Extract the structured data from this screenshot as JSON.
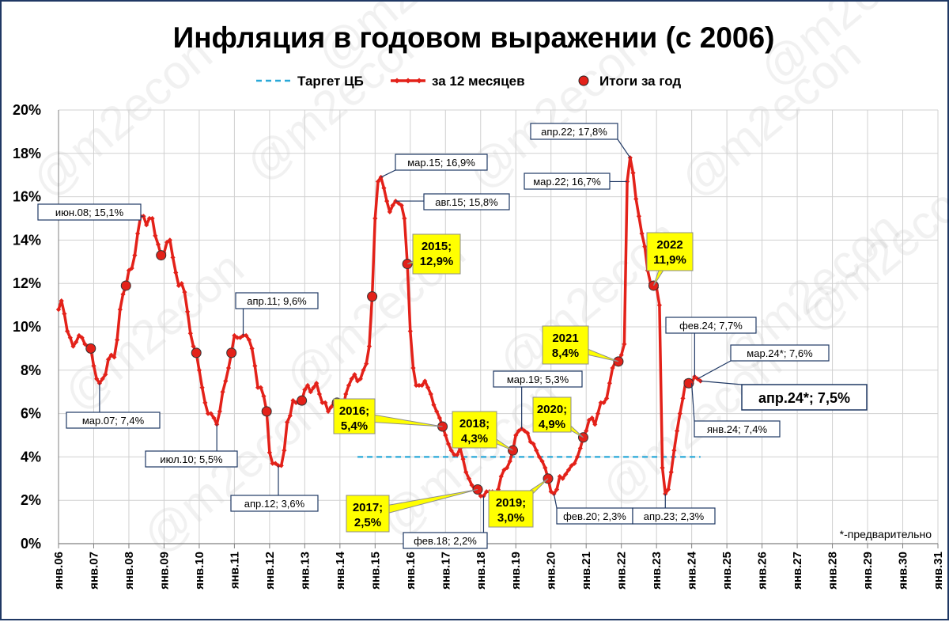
{
  "chart_data": {
    "type": "line",
    "title": "Инфляция в годовом выражении (с 2006)",
    "watermark": "@m2econ",
    "footnote": "*-предварительно",
    "ylim": [
      0,
      20
    ],
    "yticks": [
      "0%",
      "2%",
      "4%",
      "6%",
      "8%",
      "10%",
      "12%",
      "14%",
      "16%",
      "18%",
      "20%"
    ],
    "xticks": [
      "янв.06",
      "янв.07",
      "янв.08",
      "янв.09",
      "янв.10",
      "янв.11",
      "янв.12",
      "янв.13",
      "янв.14",
      "янв.15",
      "янв.16",
      "янв.17",
      "янв.18",
      "янв.19",
      "янв.20",
      "янв.21",
      "янв.22",
      "янв.23",
      "янв.24",
      "янв.25",
      "янв.26",
      "янв.27",
      "янв.28",
      "янв.29",
      "янв.30",
      "янв.31"
    ],
    "legend": [
      {
        "name": "Таргет ЦБ",
        "color": "#29a8d8",
        "style": "dashed"
      },
      {
        "name": "за 12 месяцев",
        "color": "#e32119",
        "style": "line-markers"
      },
      {
        "name": "Итоги за год",
        "color": "#e32119",
        "style": "circle"
      }
    ],
    "target": {
      "value": 4,
      "from": "2014-07",
      "to": "2024-04"
    },
    "series": [
      {
        "name": "за 12 месяцев",
        "color": "#e32119",
        "points": [
          [
            "2006-01",
            10.8
          ],
          [
            "2006-02",
            11.2
          ],
          [
            "2006-03",
            10.6
          ],
          [
            "2006-04",
            9.8
          ],
          [
            "2006-05",
            9.5
          ],
          [
            "2006-06",
            9.1
          ],
          [
            "2006-07",
            9.3
          ],
          [
            "2006-08",
            9.6
          ],
          [
            "2006-09",
            9.5
          ],
          [
            "2006-10",
            9.2
          ],
          [
            "2006-11",
            9.1
          ],
          [
            "2006-12",
            9.0
          ],
          [
            "2007-01",
            8.2
          ],
          [
            "2007-02",
            7.6
          ],
          [
            "2007-03",
            7.4
          ],
          [
            "2007-04",
            7.6
          ],
          [
            "2007-05",
            7.8
          ],
          [
            "2007-06",
            8.5
          ],
          [
            "2007-07",
            8.7
          ],
          [
            "2007-08",
            8.6
          ],
          [
            "2007-09",
            9.4
          ],
          [
            "2007-10",
            10.8
          ],
          [
            "2007-11",
            11.5
          ],
          [
            "2007-12",
            11.9
          ],
          [
            "2008-01",
            12.6
          ],
          [
            "2008-02",
            12.7
          ],
          [
            "2008-03",
            13.3
          ],
          [
            "2008-04",
            14.3
          ],
          [
            "2008-05",
            15.1
          ],
          [
            "2008-06",
            15.1
          ],
          [
            "2008-07",
            14.7
          ],
          [
            "2008-08",
            15.0
          ],
          [
            "2008-09",
            15.0
          ],
          [
            "2008-10",
            14.2
          ],
          [
            "2008-11",
            13.8
          ],
          [
            "2008-12",
            13.3
          ],
          [
            "2009-01",
            13.4
          ],
          [
            "2009-02",
            13.9
          ],
          [
            "2009-03",
            14.0
          ],
          [
            "2009-04",
            13.2
          ],
          [
            "2009-05",
            12.5
          ],
          [
            "2009-06",
            11.9
          ],
          [
            "2009-07",
            12.0
          ],
          [
            "2009-08",
            11.6
          ],
          [
            "2009-09",
            10.7
          ],
          [
            "2009-10",
            9.7
          ],
          [
            "2009-11",
            9.1
          ],
          [
            "2009-12",
            8.8
          ],
          [
            "2010-01",
            8.0
          ],
          [
            "2010-02",
            7.2
          ],
          [
            "2010-03",
            6.5
          ],
          [
            "2010-04",
            6.0
          ],
          [
            "2010-05",
            6.0
          ],
          [
            "2010-06",
            5.8
          ],
          [
            "2010-07",
            5.5
          ],
          [
            "2010-08",
            6.1
          ],
          [
            "2010-09",
            7.0
          ],
          [
            "2010-10",
            7.5
          ],
          [
            "2010-11",
            8.1
          ],
          [
            "2010-12",
            8.8
          ],
          [
            "2011-01",
            9.6
          ],
          [
            "2011-02",
            9.5
          ],
          [
            "2011-03",
            9.5
          ],
          [
            "2011-04",
            9.6
          ],
          [
            "2011-05",
            9.6
          ],
          [
            "2011-06",
            9.4
          ],
          [
            "2011-07",
            9.0
          ],
          [
            "2011-08",
            8.2
          ],
          [
            "2011-09",
            7.2
          ],
          [
            "2011-10",
            7.2
          ],
          [
            "2011-11",
            6.8
          ],
          [
            "2011-12",
            6.1
          ],
          [
            "2012-01",
            4.2
          ],
          [
            "2012-02",
            3.7
          ],
          [
            "2012-03",
            3.7
          ],
          [
            "2012-04",
            3.6
          ],
          [
            "2012-05",
            3.6
          ],
          [
            "2012-06",
            4.3
          ],
          [
            "2012-07",
            5.6
          ],
          [
            "2012-08",
            5.9
          ],
          [
            "2012-09",
            6.6
          ],
          [
            "2012-10",
            6.5
          ],
          [
            "2012-11",
            6.5
          ],
          [
            "2012-12",
            6.6
          ],
          [
            "2013-01",
            7.1
          ],
          [
            "2013-02",
            7.3
          ],
          [
            "2013-03",
            7.0
          ],
          [
            "2013-04",
            7.2
          ],
          [
            "2013-05",
            7.4
          ],
          [
            "2013-06",
            6.9
          ],
          [
            "2013-07",
            6.5
          ],
          [
            "2013-08",
            6.5
          ],
          [
            "2013-09",
            6.1
          ],
          [
            "2013-10",
            6.3
          ],
          [
            "2013-11",
            6.5
          ],
          [
            "2013-12",
            6.5
          ],
          [
            "2014-01",
            6.1
          ],
          [
            "2014-02",
            6.2
          ],
          [
            "2014-03",
            6.9
          ],
          [
            "2014-04",
            7.3
          ],
          [
            "2014-05",
            7.6
          ],
          [
            "2014-06",
            7.8
          ],
          [
            "2014-07",
            7.5
          ],
          [
            "2014-08",
            7.6
          ],
          [
            "2014-09",
            8.0
          ],
          [
            "2014-10",
            8.3
          ],
          [
            "2014-11",
            9.1
          ],
          [
            "2014-12",
            11.4
          ],
          [
            "2015-01",
            15.0
          ],
          [
            "2015-02",
            16.7
          ],
          [
            "2015-03",
            16.9
          ],
          [
            "2015-04",
            16.4
          ],
          [
            "2015-05",
            15.8
          ],
          [
            "2015-06",
            15.3
          ],
          [
            "2015-07",
            15.6
          ],
          [
            "2015-08",
            15.8
          ],
          [
            "2015-09",
            15.7
          ],
          [
            "2015-10",
            15.6
          ],
          [
            "2015-11",
            15.0
          ],
          [
            "2015-12",
            12.9
          ],
          [
            "2016-01",
            9.8
          ],
          [
            "2016-02",
            8.1
          ],
          [
            "2016-03",
            7.3
          ],
          [
            "2016-04",
            7.3
          ],
          [
            "2016-05",
            7.3
          ],
          [
            "2016-06",
            7.5
          ],
          [
            "2016-07",
            7.2
          ],
          [
            "2016-08",
            6.9
          ],
          [
            "2016-09",
            6.4
          ],
          [
            "2016-10",
            6.1
          ],
          [
            "2016-11",
            5.8
          ],
          [
            "2016-12",
            5.4
          ],
          [
            "2017-01",
            5.0
          ],
          [
            "2017-02",
            4.6
          ],
          [
            "2017-03",
            4.3
          ],
          [
            "2017-04",
            4.1
          ],
          [
            "2017-05",
            4.1
          ],
          [
            "2017-06",
            4.4
          ],
          [
            "2017-07",
            3.9
          ],
          [
            "2017-08",
            3.3
          ],
          [
            "2017-09",
            3.0
          ],
          [
            "2017-10",
            2.7
          ],
          [
            "2017-11",
            2.5
          ],
          [
            "2017-12",
            2.5
          ],
          [
            "2018-01",
            2.2
          ],
          [
            "2018-02",
            2.2
          ],
          [
            "2018-03",
            2.4
          ],
          [
            "2018-04",
            2.4
          ],
          [
            "2018-05",
            2.4
          ],
          [
            "2018-06",
            2.3
          ],
          [
            "2018-07",
            2.5
          ],
          [
            "2018-08",
            3.1
          ],
          [
            "2018-09",
            3.4
          ],
          [
            "2018-10",
            3.5
          ],
          [
            "2018-11",
            3.8
          ],
          [
            "2018-12",
            4.3
          ],
          [
            "2019-01",
            5.0
          ],
          [
            "2019-02",
            5.2
          ],
          [
            "2019-03",
            5.3
          ],
          [
            "2019-04",
            5.2
          ],
          [
            "2019-05",
            5.1
          ],
          [
            "2019-06",
            4.7
          ],
          [
            "2019-07",
            4.6
          ],
          [
            "2019-08",
            4.3
          ],
          [
            "2019-09",
            4.0
          ],
          [
            "2019-10",
            3.8
          ],
          [
            "2019-11",
            3.5
          ],
          [
            "2019-12",
            3.0
          ],
          [
            "2020-01",
            2.4
          ],
          [
            "2020-02",
            2.3
          ],
          [
            "2020-03",
            2.5
          ],
          [
            "2020-04",
            3.1
          ],
          [
            "2020-05",
            3.0
          ],
          [
            "2020-06",
            3.2
          ],
          [
            "2020-07",
            3.4
          ],
          [
            "2020-08",
            3.6
          ],
          [
            "2020-09",
            3.7
          ],
          [
            "2020-10",
            4.0
          ],
          [
            "2020-11",
            4.4
          ],
          [
            "2020-12",
            4.9
          ],
          [
            "2021-01",
            5.2
          ],
          [
            "2021-02",
            5.7
          ],
          [
            "2021-03",
            5.8
          ],
          [
            "2021-04",
            5.5
          ],
          [
            "2021-05",
            6.0
          ],
          [
            "2021-06",
            6.5
          ],
          [
            "2021-07",
            6.5
          ],
          [
            "2021-08",
            6.7
          ],
          [
            "2021-09",
            7.4
          ],
          [
            "2021-10",
            8.1
          ],
          [
            "2021-11",
            8.4
          ],
          [
            "2021-12",
            8.4
          ],
          [
            "2022-01",
            8.7
          ],
          [
            "2022-02",
            9.2
          ],
          [
            "2022-03",
            16.7
          ],
          [
            "2022-04",
            17.8
          ],
          [
            "2022-05",
            17.1
          ],
          [
            "2022-06",
            15.9
          ],
          [
            "2022-07",
            15.1
          ],
          [
            "2022-08",
            14.3
          ],
          [
            "2022-09",
            13.7
          ],
          [
            "2022-10",
            12.6
          ],
          [
            "2022-11",
            12.0
          ],
          [
            "2022-12",
            11.9
          ],
          [
            "2023-01",
            11.8
          ],
          [
            "2023-02",
            11.0
          ],
          [
            "2023-03",
            3.5
          ],
          [
            "2023-04",
            2.3
          ],
          [
            "2023-05",
            2.5
          ],
          [
            "2023-06",
            3.3
          ],
          [
            "2023-07",
            4.3
          ],
          [
            "2023-08",
            5.2
          ],
          [
            "2023-09",
            6.0
          ],
          [
            "2023-10",
            6.7
          ],
          [
            "2023-11",
            7.5
          ],
          [
            "2023-12",
            7.4
          ],
          [
            "2024-01",
            7.4
          ],
          [
            "2024-02",
            7.7
          ],
          [
            "2024-03",
            7.6
          ],
          [
            "2024-04",
            7.5
          ]
        ]
      },
      {
        "name": "Итоги за год",
        "color": "#e32119",
        "points": [
          [
            "2006-12",
            9.0
          ],
          [
            "2007-12",
            11.9
          ],
          [
            "2008-12",
            13.3
          ],
          [
            "2009-12",
            8.8
          ],
          [
            "2010-12",
            8.8
          ],
          [
            "2011-12",
            6.1
          ],
          [
            "2012-12",
            6.6
          ],
          [
            "2013-12",
            6.5
          ],
          [
            "2014-12",
            11.4
          ],
          [
            "2015-12",
            12.9
          ],
          [
            "2016-12",
            5.4
          ],
          [
            "2017-12",
            2.5
          ],
          [
            "2018-12",
            4.3
          ],
          [
            "2019-12",
            3.0
          ],
          [
            "2020-12",
            4.9
          ],
          [
            "2021-12",
            8.4
          ],
          [
            "2022-12",
            11.9
          ],
          [
            "2023-12",
            7.4
          ]
        ]
      }
    ],
    "annotations": [
      {
        "text": "июн.08; 15,1%",
        "at": "2008-06",
        "y": 15.1,
        "style": "box"
      },
      {
        "text": "мар.07; 7,4%",
        "at": "2007-03",
        "y": 7.4,
        "style": "box"
      },
      {
        "text": "июл.10; 5,5%",
        "at": "2010-07",
        "y": 5.5,
        "style": "box"
      },
      {
        "text": "апр.11; 9,6%",
        "at": "2011-04",
        "y": 9.6,
        "style": "box"
      },
      {
        "text": "апр.12; 3,6%",
        "at": "2012-04",
        "y": 3.6,
        "style": "box"
      },
      {
        "text": "мар.15; 16,9%",
        "at": "2015-03",
        "y": 16.9,
        "style": "box"
      },
      {
        "text": "авг.15; 15,8%",
        "at": "2015-08",
        "y": 15.8,
        "style": "box"
      },
      {
        "text": "фев.18; 2,2%",
        "at": "2018-02",
        "y": 2.2,
        "style": "box"
      },
      {
        "text": "мар.19; 5,3%",
        "at": "2019-03",
        "y": 5.3,
        "style": "box"
      },
      {
        "text": "фев.20; 2,3%",
        "at": "2020-02",
        "y": 2.3,
        "style": "box"
      },
      {
        "text": "апр.22; 17,8%",
        "at": "2022-04",
        "y": 17.8,
        "style": "box"
      },
      {
        "text": "мар.22; 16,7%",
        "at": "2022-03",
        "y": 16.7,
        "style": "box"
      },
      {
        "text": "апр.23; 2,3%",
        "at": "2023-04",
        "y": 2.3,
        "style": "box"
      },
      {
        "text": "фев.24; 7,7%",
        "at": "2024-02",
        "y": 7.7,
        "style": "box"
      },
      {
        "text": "мар.24*; 7,6%",
        "at": "2024-03",
        "y": 7.6,
        "style": "box"
      },
      {
        "text": "янв.24; 7,4%",
        "at": "2024-01",
        "y": 7.4,
        "style": "box"
      },
      {
        "text": "апр.24*; 7,5%",
        "at": "2024-04",
        "y": 7.5,
        "style": "big"
      },
      {
        "lines": [
          "2015;",
          "12,9%"
        ],
        "at": "2015-12",
        "y": 12.9,
        "style": "yellow"
      },
      {
        "lines": [
          "2016;",
          "5,4%"
        ],
        "at": "2016-12",
        "y": 5.4,
        "style": "yellow"
      },
      {
        "lines": [
          "2017;",
          "2,5%"
        ],
        "at": "2017-12",
        "y": 2.5,
        "style": "yellow"
      },
      {
        "lines": [
          "2018;",
          "4,3%"
        ],
        "at": "2018-12",
        "y": 4.3,
        "style": "yellow"
      },
      {
        "lines": [
          "2019;",
          "3,0%"
        ],
        "at": "2019-12",
        "y": 3.0,
        "style": "yellow"
      },
      {
        "lines": [
          "2020;",
          "4,9%"
        ],
        "at": "2020-12",
        "y": 4.9,
        "style": "yellow"
      },
      {
        "lines": [
          "2021",
          "8,4%"
        ],
        "at": "2021-12",
        "y": 8.4,
        "style": "yellow"
      },
      {
        "lines": [
          "2022",
          "11,9%"
        ],
        "at": "2022-12",
        "y": 11.9,
        "style": "yellow"
      }
    ]
  }
}
